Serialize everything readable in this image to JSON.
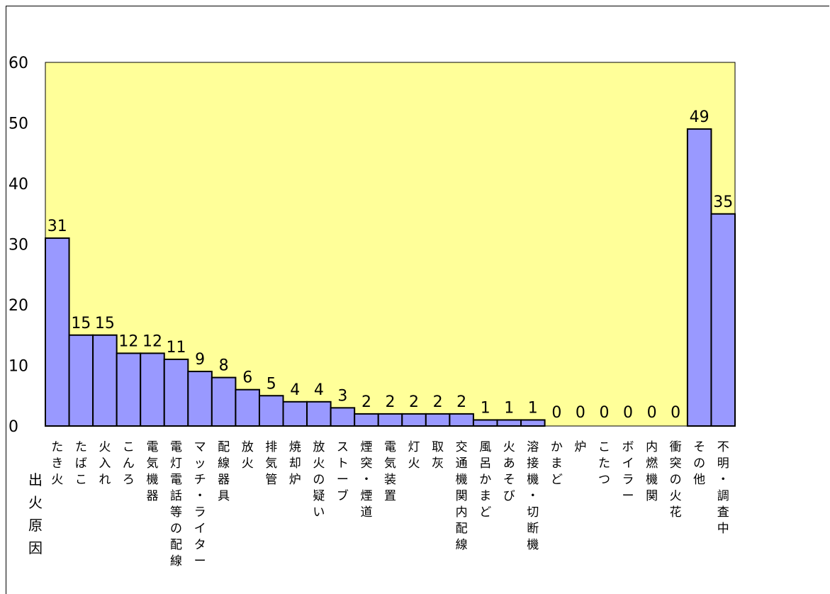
{
  "chart_data": {
    "type": "bar",
    "title": "",
    "xlabel": "出火原因",
    "ylabel": "",
    "ylim": [
      0,
      60
    ],
    "yticks": [
      0,
      10,
      20,
      30,
      40,
      50,
      60
    ],
    "grid": false,
    "legend": "none",
    "colors": {
      "plot_bg": "#ffff99",
      "bar_fill": "#9999ff",
      "bar_stroke": "#000000"
    },
    "categories": [
      "たき火",
      "たばこ",
      "火入れ",
      "こんろ",
      "電気機器",
      "電灯電話等の配線",
      "マッチ・ライター",
      "配線器具",
      "放火",
      "排気管",
      "焼却炉",
      "放火の疑い",
      "ストーブ",
      "煙突・煙道",
      "電気装置",
      "灯火",
      "取灰",
      "交通機関内配線",
      "風呂かまど",
      "火あそび",
      "溶接機・切断機",
      "かまど",
      "炉",
      "こたつ",
      "ボイラー",
      "内燃機関",
      "衝突の火花",
      "その他",
      "不明・調査中"
    ],
    "values": [
      31,
      15,
      15,
      12,
      12,
      11,
      9,
      8,
      6,
      5,
      4,
      4,
      3,
      2,
      2,
      2,
      2,
      2,
      1,
      1,
      1,
      0,
      0,
      0,
      0,
      0,
      0,
      49,
      35
    ]
  }
}
